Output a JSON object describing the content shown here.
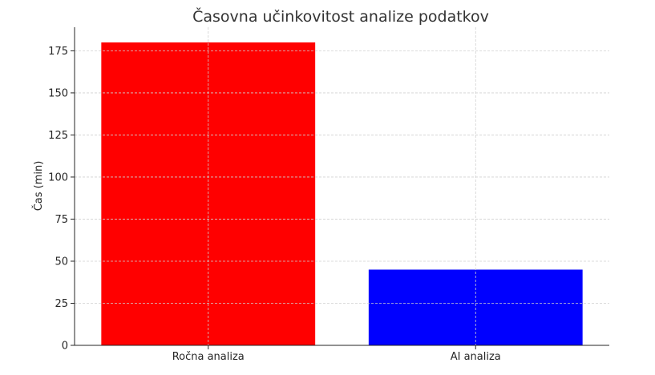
{
  "chart_data": {
    "type": "bar",
    "title": "Časovna učinkovitost analize podatkov",
    "xlabel": "",
    "ylabel": "Čas (min)",
    "categories": [
      "Ročna analiza",
      "AI analiza"
    ],
    "values": [
      180,
      45
    ],
    "colors": [
      "#ff0000",
      "#0000ff"
    ],
    "ylim": [
      0,
      189
    ],
    "yticks": [
      0,
      25,
      50,
      75,
      100,
      125,
      150,
      175
    ],
    "grid": true
  }
}
